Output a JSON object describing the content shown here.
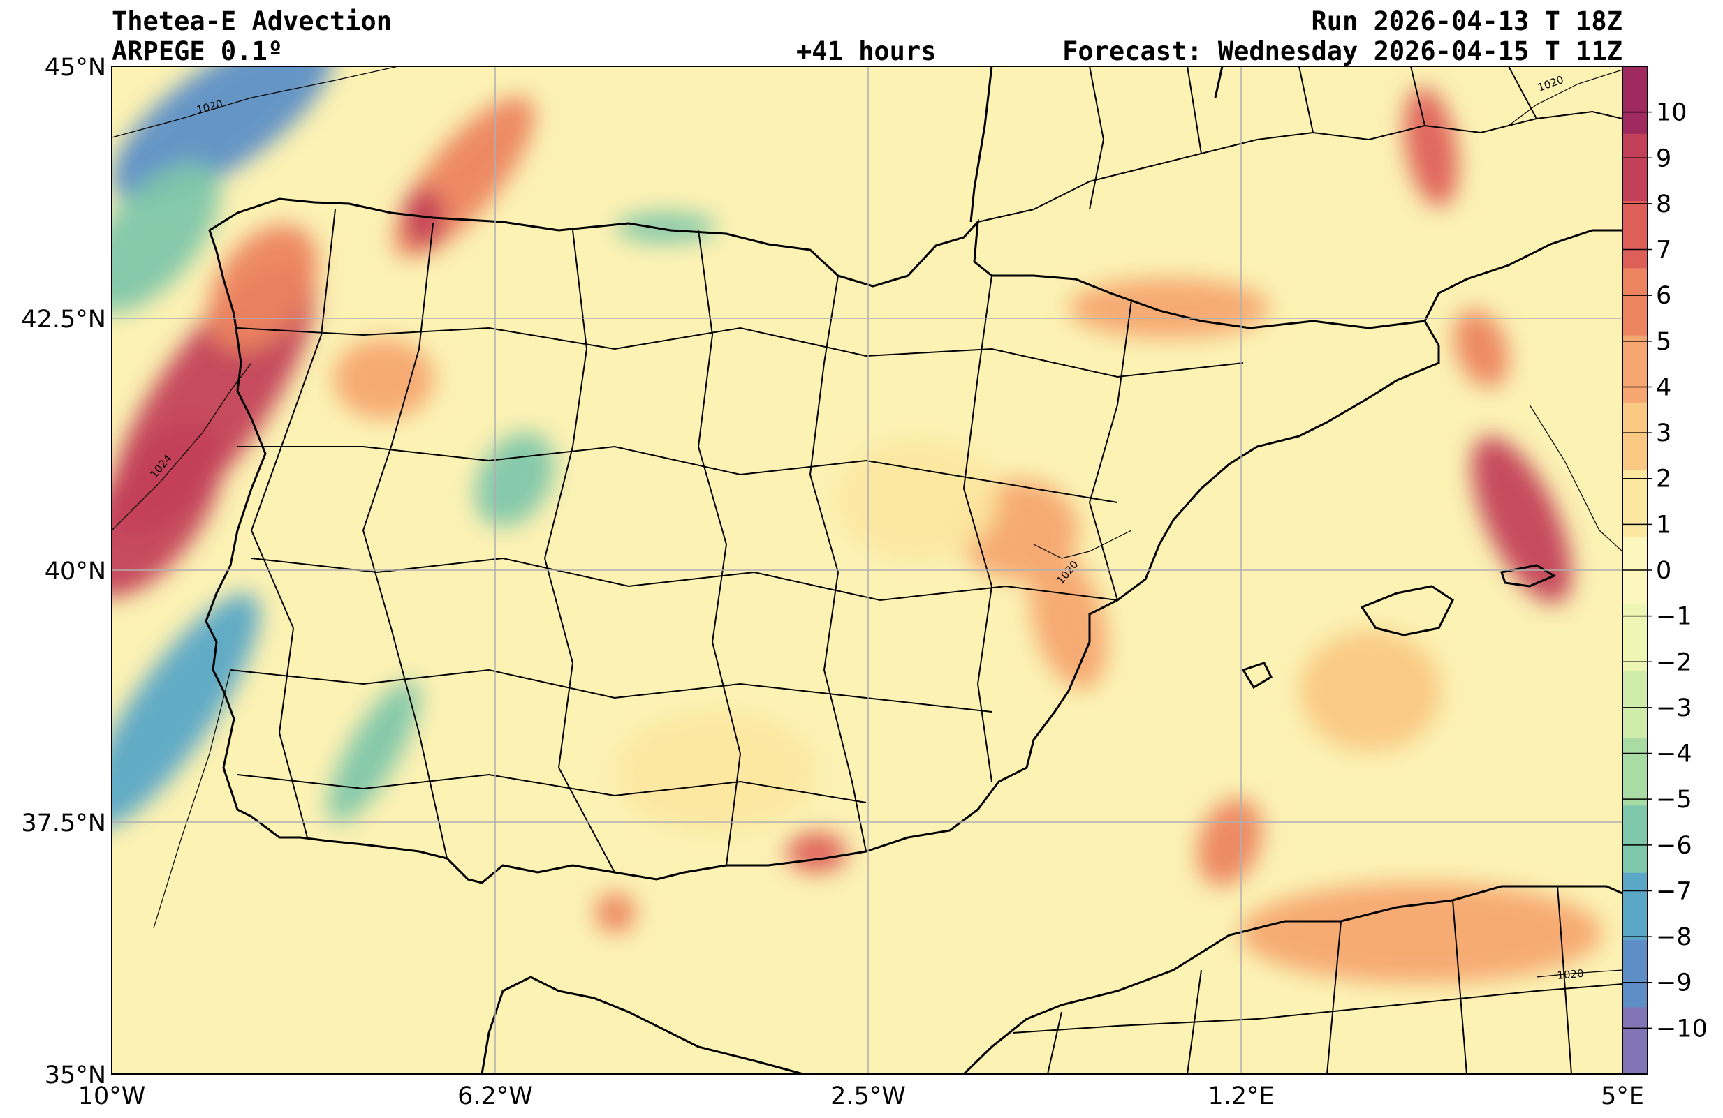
{
  "header": {
    "title": "Thetea-E Advection",
    "model": "ARPEGE 0.1º",
    "lead": "+41 hours",
    "run": "Run 2026-04-13 T 18Z",
    "forecast": "Forecast: Wednesday 2026-04-15 T 11Z"
  },
  "axes": {
    "lat_labels": [
      "45°N",
      "42.5°N",
      "40°N",
      "37.5°N",
      "35°N"
    ],
    "lon_labels": [
      "10°W",
      "6.2°W",
      "2.5°W",
      "1.2°E",
      "5°E"
    ],
    "lon_range": [
      -10,
      5
    ],
    "lat_range": [
      35,
      45
    ],
    "grid": true
  },
  "colorbar": {
    "ticks": [
      "10",
      "9",
      "8",
      "7",
      "6",
      "5",
      "4",
      "3",
      "2",
      "1",
      "0",
      "−1",
      "−2",
      "−3",
      "−4",
      "−5",
      "−6",
      "−7",
      "−8",
      "−9",
      "−10"
    ],
    "range": [
      -11,
      11
    ],
    "colors": [
      "#8175b6",
      "#5d8fc6",
      "#5aa6c7",
      "#7fc7aa",
      "#a8dca4",
      "#cfecab",
      "#eef6b4",
      "#fcf8bd",
      "#fce7a0",
      "#f9c882",
      "#f6a670",
      "#ec8460",
      "#de5f58",
      "#c3405a",
      "#9e2a5f"
    ]
  },
  "isobars": [
    "1020",
    "1024",
    "1020",
    "1020",
    "1020"
  ],
  "blobs": [
    {
      "lon": -9.0,
      "lat": 41.7,
      "rx": 0.55,
      "ry": 1.6,
      "rot": 35,
      "v": 10
    },
    {
      "lon": -9.6,
      "lat": 40.6,
      "rx": 0.5,
      "ry": 1.0,
      "rot": 35,
      "v": 9
    },
    {
      "lon": -8.5,
      "lat": 42.8,
      "rx": 0.45,
      "ry": 0.7,
      "rot": 35,
      "v": 7
    },
    {
      "lon": -6.5,
      "lat": 43.9,
      "rx": 0.35,
      "ry": 1.0,
      "rot": 40,
      "v": 7
    },
    {
      "lon": -6.9,
      "lat": 43.5,
      "rx": 0.2,
      "ry": 0.3,
      "rot": 0,
      "v": 9
    },
    {
      "lon": -8.9,
      "lat": 44.5,
      "rx": 0.5,
      "ry": 1.3,
      "rot": 55,
      "v": -9
    },
    {
      "lon": -9.6,
      "lat": 43.3,
      "rx": 0.45,
      "ry": 0.9,
      "rot": 40,
      "v": -7
    },
    {
      "lon": -9.4,
      "lat": 38.6,
      "rx": 0.4,
      "ry": 1.4,
      "rot": 35,
      "v": -8
    },
    {
      "lon": -7.4,
      "lat": 38.2,
      "rx": 0.25,
      "ry": 0.8,
      "rot": 30,
      "v": -7
    },
    {
      "lon": -6.0,
      "lat": 40.9,
      "rx": 0.35,
      "ry": 0.5,
      "rot": 30,
      "v": -6
    },
    {
      "lon": -4.5,
      "lat": 43.4,
      "rx": 0.5,
      "ry": 0.15,
      "rot": 0,
      "v": -7
    },
    {
      "lon": 4.0,
      "lat": 40.5,
      "rx": 0.35,
      "ry": 0.9,
      "rot": -25,
      "v": 10
    },
    {
      "lon": 3.1,
      "lat": 44.2,
      "rx": 0.25,
      "ry": 0.6,
      "rot": -10,
      "v": 8
    },
    {
      "lon": 3.6,
      "lat": 42.2,
      "rx": 0.25,
      "ry": 0.4,
      "rot": -20,
      "v": 6
    },
    {
      "lon": 1.1,
      "lat": 37.3,
      "rx": 0.3,
      "ry": 0.45,
      "rot": 20,
      "v": 6
    },
    {
      "lon": -1.0,
      "lat": 40.4,
      "rx": 0.6,
      "ry": 0.5,
      "rot": 0,
      "v": 5
    },
    {
      "lon": -0.5,
      "lat": 39.5,
      "rx": 0.35,
      "ry": 0.7,
      "rot": -15,
      "v": 4
    },
    {
      "lon": -3.0,
      "lat": 37.2,
      "rx": 0.3,
      "ry": 0.2,
      "rot": 0,
      "v": 8
    },
    {
      "lon": -5.0,
      "lat": 36.6,
      "rx": 0.2,
      "ry": 0.2,
      "rot": 0,
      "v": 6
    },
    {
      "lon": 0.5,
      "lat": 42.6,
      "rx": 1.0,
      "ry": 0.3,
      "rot": 0,
      "v": 5
    },
    {
      "lon": 2.5,
      "lat": 38.8,
      "rx": 0.7,
      "ry": 0.6,
      "rot": 0,
      "v": 3
    },
    {
      "lon": 3.0,
      "lat": 36.4,
      "rx": 1.8,
      "ry": 0.5,
      "rot": 0,
      "v": 4
    },
    {
      "lon": -7.3,
      "lat": 41.9,
      "rx": 0.5,
      "ry": 0.4,
      "rot": 0,
      "v": 4
    },
    {
      "lon": -2.0,
      "lat": 40.7,
      "rx": 0.8,
      "ry": 0.6,
      "rot": 0,
      "v": 2
    },
    {
      "lon": -4.0,
      "lat": 38.0,
      "rx": 1.0,
      "ry": 0.6,
      "rot": 0,
      "v": 2
    }
  ]
}
